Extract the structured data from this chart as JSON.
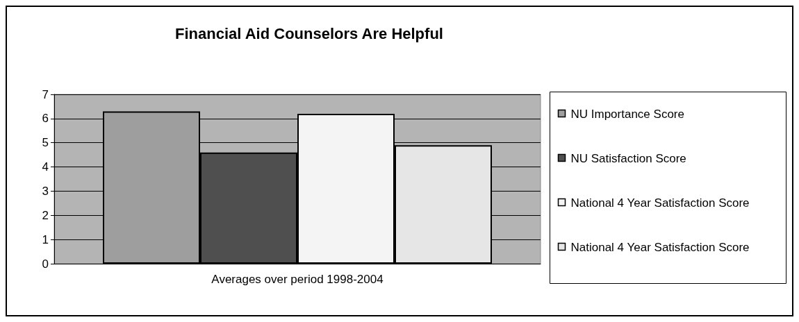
{
  "chart_data": {
    "type": "bar",
    "title": "Financial Aid Counselors Are Helpful",
    "categories": [
      "Averages over period 1998-2004"
    ],
    "series": [
      {
        "name": "NU Importance Score",
        "color": "#9e9e9e",
        "values": [
          6.3
        ]
      },
      {
        "name": "NU Satisfaction Score",
        "color": "#4f4f4f",
        "values": [
          4.6
        ]
      },
      {
        "name": "National 4 Year Satisfaction Score",
        "color": "#f4f4f4",
        "values": [
          6.2
        ]
      },
      {
        "name": "National 4 Year Satisfaction Score",
        "color": "#e6e6e6",
        "values": [
          4.9
        ]
      }
    ],
    "ylim": [
      0,
      7
    ],
    "yticks": [
      0,
      1,
      2,
      3,
      4,
      5,
      6,
      7
    ],
    "grid": "y",
    "legend": "right"
  }
}
